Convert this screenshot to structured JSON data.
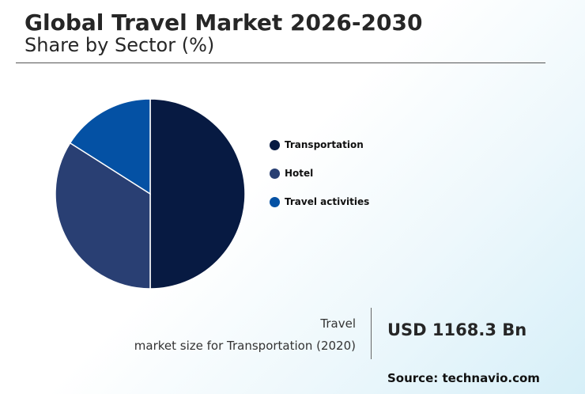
{
  "header": {
    "title": "Global Travel Market 2026-2030",
    "subtitle": "Share by Sector (%)"
  },
  "chart_data": {
    "type": "pie",
    "slices": [
      {
        "label": "Transportation",
        "value": 50,
        "color": "#071a42"
      },
      {
        "label": "Hotel",
        "value": 34,
        "color": "#293f73"
      },
      {
        "label": "Travel activities",
        "value": 16,
        "color": "#0451a4"
      }
    ],
    "legend_position": "right"
  },
  "kpi": {
    "label_line1": "Travel",
    "label_line2": "market size for Transportation (2020)",
    "value": "USD 1168.3 Bn"
  },
  "footer": {
    "source": "Source: technavio.com"
  }
}
